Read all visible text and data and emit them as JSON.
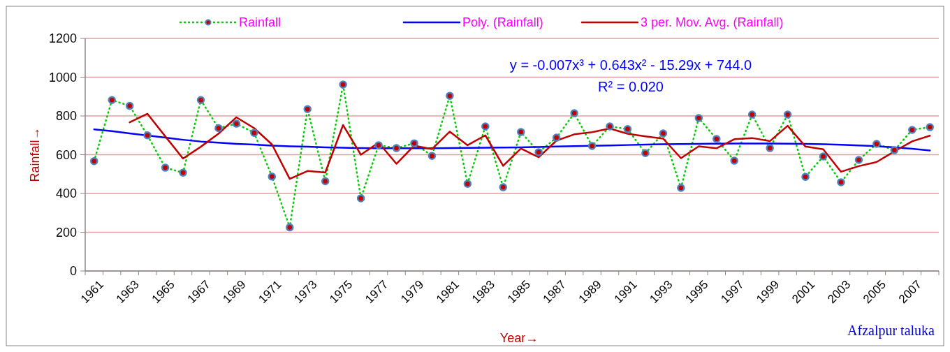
{
  "chart_data": {
    "type": "line",
    "xlabel": "Year→",
    "ylabel": "Rainfall→",
    "categories": [
      "1961",
      null,
      "1963",
      null,
      "1965",
      null,
      "1967",
      null,
      "1969",
      null,
      "1971",
      null,
      "1973",
      null,
      "1975",
      null,
      "1977",
      null,
      "1979",
      null,
      "1981",
      null,
      "1983",
      null,
      "1985",
      null,
      "1987",
      null,
      "1989",
      null,
      "1991",
      null,
      "1993",
      null,
      "1995",
      null,
      "1997",
      null,
      "1999",
      null,
      "2001",
      null,
      "2003",
      null,
      "2005",
      null,
      "2007",
      null
    ],
    "series": [
      {
        "name": "Rainfall",
        "color": "#00cc00",
        "line_style": "dotted",
        "marker": "circle",
        "values": [
          567,
          882,
          852,
          700,
          533,
          507,
          882,
          737,
          760,
          713,
          487,
          225,
          835,
          463,
          962,
          375,
          649,
          634,
          659,
          594,
          904,
          450,
          746,
          432,
          717,
          613,
          688,
          814,
          645,
          746,
          732,
          608,
          710,
          429,
          789,
          681,
          569,
          807,
          634,
          807,
          486,
          591,
          458,
          573,
          656,
          623,
          728,
          742
        ]
      },
      {
        "name": "Poly. (Rainfall)",
        "color": "#0000ff",
        "line_style": "solid",
        "marker": "none",
        "values": [
          731,
          722,
          710,
          699,
          688,
          677,
          668,
          662,
          656,
          652,
          647,
          643,
          641,
          638,
          636,
          634,
          633,
          633,
          633,
          633,
          634,
          635,
          636,
          637,
          638,
          640,
          642,
          644,
          646,
          648,
          650,
          652,
          654,
          655,
          656,
          657,
          658,
          658,
          658,
          657,
          656,
          654,
          651,
          648,
          644,
          638,
          631,
          622
        ]
      },
      {
        "name": "3 per. Mov. Avg. (Rainfall)",
        "color": "#c00000",
        "line_style": "solid",
        "marker": "none",
        "values": [
          null,
          null,
          767,
          811,
          695,
          580,
          641,
          709,
          793,
          737,
          653,
          475,
          516,
          508,
          753,
          600,
          662,
          553,
          647,
          629,
          719,
          649,
          700,
          543,
          632,
          587,
          673,
          705,
          716,
          735,
          708,
          695,
          683,
          582,
          643,
          633,
          680,
          686,
          670,
          749,
          642,
          628,
          512,
          541,
          562,
          617,
          669,
          698
        ]
      }
    ],
    "ylim": [
      0,
      1200
    ],
    "yticks": [
      0,
      200,
      400,
      600,
      800,
      1000,
      1200
    ],
    "grid": "y",
    "legend": "top",
    "annotations": [
      "y = -0.007x³ + 0.643x² - 15.29x + 744.0",
      "R² = 0.020",
      "Afzalpur taluka"
    ]
  }
}
